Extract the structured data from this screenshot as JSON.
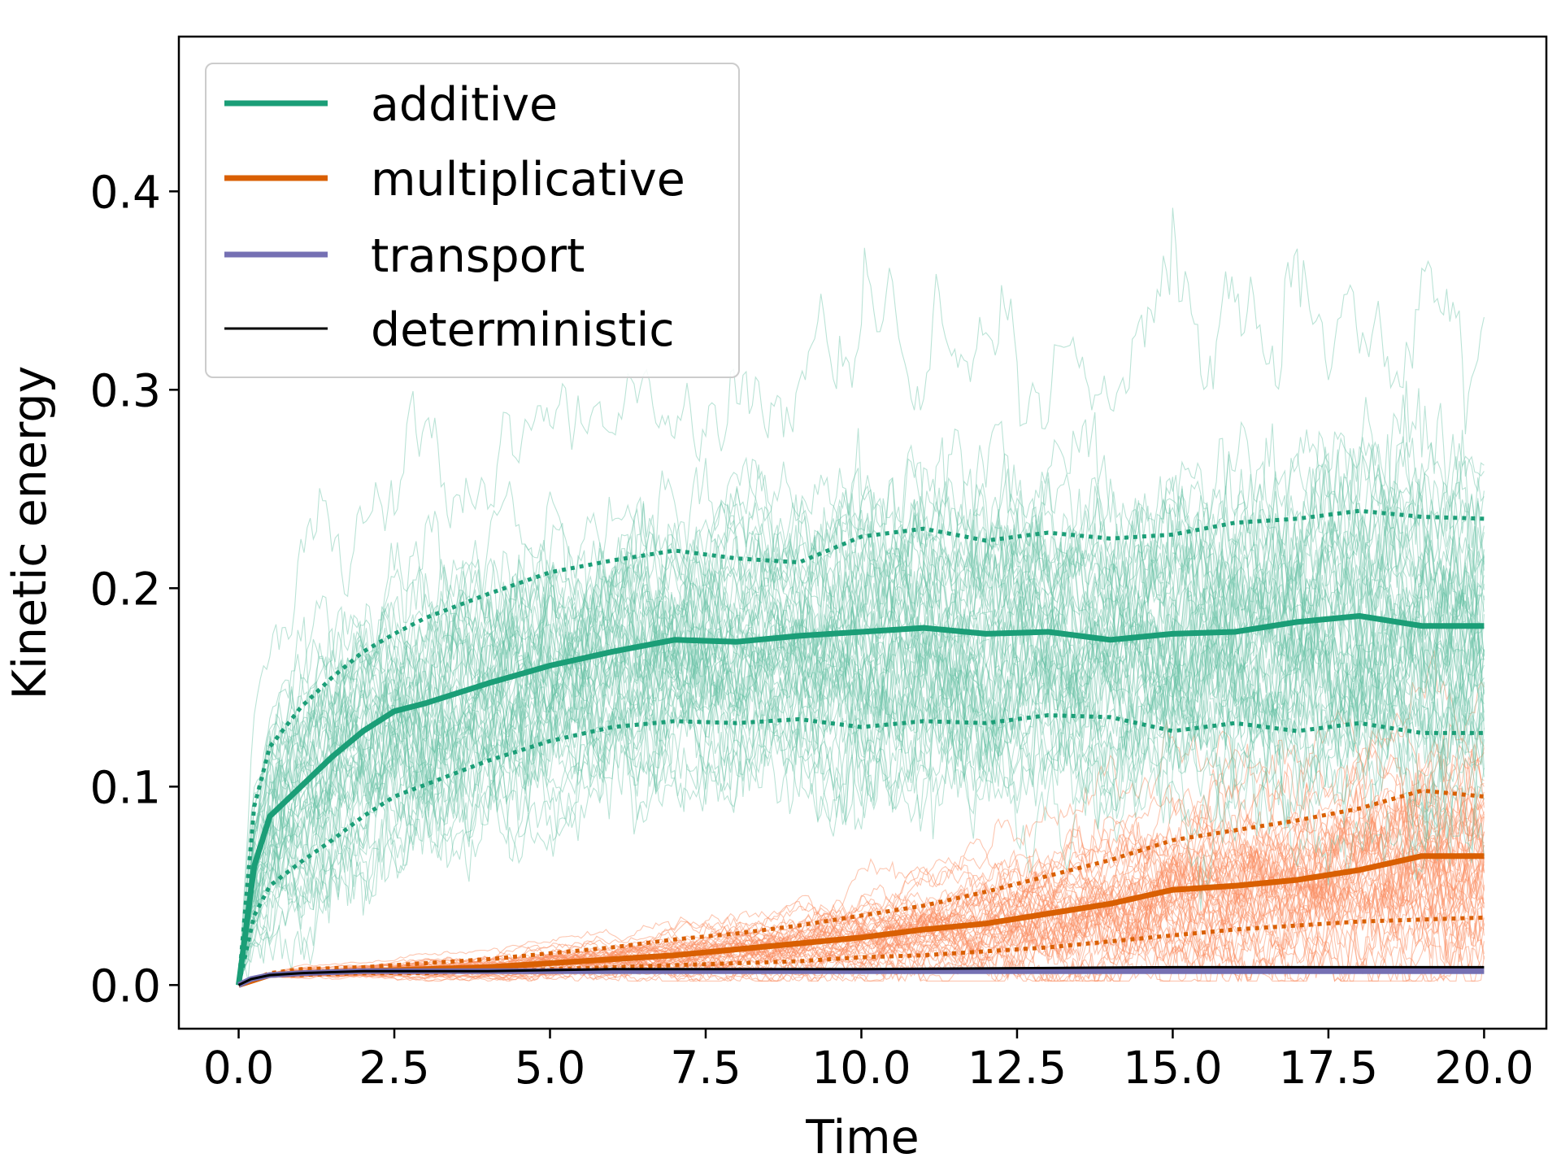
{
  "chart_data": {
    "type": "line",
    "title": "",
    "xlabel": "Time",
    "ylabel": "Kinetic energy",
    "xlim": [
      -0.96,
      21.0
    ],
    "ylim": [
      -0.022,
      0.478
    ],
    "xticks": [
      0.0,
      2.5,
      5.0,
      7.5,
      10.0,
      12.5,
      15.0,
      17.5,
      20.0
    ],
    "xtick_labels": [
      "0.0",
      "2.5",
      "5.0",
      "7.5",
      "10.0",
      "12.5",
      "15.0",
      "17.5",
      "20.0"
    ],
    "yticks": [
      0.0,
      0.1,
      0.2,
      0.3,
      0.4
    ],
    "ytick_labels": [
      "0.0",
      "0.1",
      "0.2",
      "0.3",
      "0.4"
    ],
    "legend_position": "top-left",
    "series": [
      {
        "name": "additive",
        "color": "#1b9e77",
        "ensemble_color": "#66c2a5",
        "ensemble_members": 50,
        "mean": {
          "x": [
            0,
            0.25,
            0.5,
            1,
            1.5,
            2,
            2.5,
            3,
            4,
            5,
            6,
            7,
            8,
            9,
            10,
            11,
            12,
            13,
            14,
            15,
            16,
            17,
            18,
            19,
            20
          ],
          "y": [
            0.0,
            0.06,
            0.085,
            0.1,
            0.115,
            0.128,
            0.138,
            0.142,
            0.152,
            0.161,
            0.168,
            0.174,
            0.173,
            0.176,
            0.178,
            0.18,
            0.177,
            0.178,
            0.174,
            0.177,
            0.178,
            0.183,
            0.186,
            0.181,
            0.181
          ]
        },
        "upper": {
          "x": [
            0,
            0.25,
            0.5,
            1,
            1.5,
            2,
            2.5,
            3,
            4,
            5,
            6,
            7,
            8,
            9,
            10,
            11,
            12,
            13,
            14,
            15,
            16,
            17,
            18,
            19,
            20
          ],
          "y": [
            0.0,
            0.09,
            0.12,
            0.14,
            0.155,
            0.168,
            0.177,
            0.185,
            0.197,
            0.208,
            0.214,
            0.219,
            0.215,
            0.213,
            0.226,
            0.23,
            0.224,
            0.228,
            0.225,
            0.227,
            0.233,
            0.235,
            0.239,
            0.236,
            0.235
          ]
        },
        "lower": {
          "x": [
            0,
            0.25,
            0.5,
            1,
            1.5,
            2,
            2.5,
            3,
            4,
            5,
            6,
            7,
            8,
            9,
            10,
            11,
            12,
            13,
            14,
            15,
            16,
            17,
            18,
            19,
            20
          ],
          "y": [
            0.0,
            0.035,
            0.05,
            0.062,
            0.073,
            0.085,
            0.095,
            0.101,
            0.113,
            0.123,
            0.13,
            0.133,
            0.132,
            0.134,
            0.13,
            0.133,
            0.132,
            0.136,
            0.135,
            0.128,
            0.132,
            0.128,
            0.132,
            0.127,
            0.127
          ]
        }
      },
      {
        "name": "multiplicative",
        "color": "#d95f02",
        "ensemble_color": "#fc8d62",
        "ensemble_members": 50,
        "mean": {
          "x": [
            0,
            0.5,
            1,
            2,
            3,
            4,
            5,
            6,
            7,
            8,
            9,
            10,
            11,
            12,
            13,
            14,
            15,
            16,
            17,
            18,
            19,
            20
          ],
          "y": [
            0.0,
            0.005,
            0.006,
            0.007,
            0.008,
            0.009,
            0.011,
            0.013,
            0.015,
            0.018,
            0.021,
            0.024,
            0.028,
            0.031,
            0.036,
            0.041,
            0.048,
            0.05,
            0.053,
            0.058,
            0.065,
            0.065
          ]
        },
        "upper": {
          "x": [
            0,
            0.5,
            1,
            2,
            3,
            4,
            5,
            6,
            7,
            8,
            9,
            10,
            11,
            12,
            13,
            14,
            15,
            16,
            17,
            18,
            19,
            20
          ],
          "y": [
            0.0,
            0.006,
            0.008,
            0.009,
            0.011,
            0.013,
            0.016,
            0.019,
            0.023,
            0.026,
            0.03,
            0.035,
            0.04,
            0.047,
            0.055,
            0.063,
            0.073,
            0.078,
            0.083,
            0.089,
            0.098,
            0.095
          ]
        },
        "lower": {
          "x": [
            0,
            0.5,
            1,
            2,
            3,
            4,
            5,
            6,
            7,
            8,
            9,
            10,
            11,
            12,
            13,
            14,
            15,
            16,
            17,
            18,
            19,
            20
          ],
          "y": [
            0.0,
            0.005,
            0.005,
            0.006,
            0.006,
            0.007,
            0.008,
            0.009,
            0.01,
            0.011,
            0.012,
            0.014,
            0.015,
            0.017,
            0.019,
            0.022,
            0.025,
            0.028,
            0.03,
            0.032,
            0.033,
            0.034
          ]
        }
      },
      {
        "name": "transport",
        "color": "#7570b3",
        "x": [
          0,
          0.2,
          0.5,
          1,
          2,
          4,
          6,
          10,
          15,
          20
        ],
        "y": [
          0.0,
          0.003,
          0.005,
          0.006,
          0.007,
          0.007,
          0.007,
          0.007,
          0.007,
          0.007
        ]
      },
      {
        "name": "deterministic",
        "color": "#000000",
        "x": [
          0,
          0.2,
          0.5,
          1,
          2,
          4,
          6,
          10,
          15,
          20
        ],
        "y": [
          0.0,
          0.003,
          0.005,
          0.006,
          0.007,
          0.007,
          0.008,
          0.008,
          0.009,
          0.009
        ]
      }
    ]
  }
}
